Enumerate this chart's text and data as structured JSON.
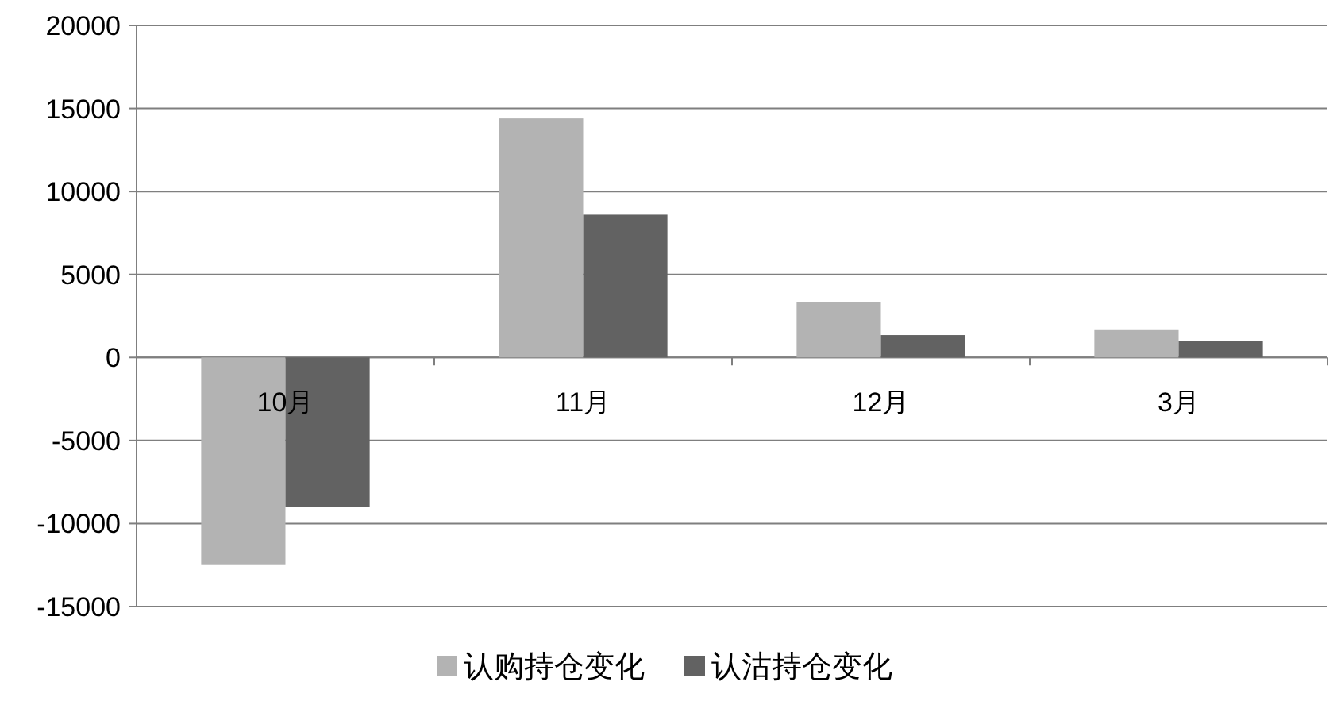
{
  "chart_data": {
    "type": "bar",
    "categories": [
      "10月",
      "11月",
      "12月",
      "3月"
    ],
    "series": [
      {
        "name": "认购持仓变化",
        "color": "#b3b3b3",
        "values": [
          -12500,
          14400,
          3350,
          1650
        ]
      },
      {
        "name": "认沽持仓变化",
        "color": "#626262",
        "values": [
          -9000,
          8600,
          1350,
          1000
        ]
      }
    ],
    "ylim": [
      -15000,
      20000
    ],
    "yticks": [
      -15000,
      -10000,
      -5000,
      0,
      5000,
      10000,
      15000,
      20000
    ],
    "grid": "y",
    "legend": "bottom"
  }
}
